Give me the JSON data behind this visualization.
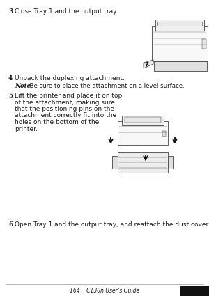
{
  "bg_color": "#f2f2f2",
  "page_bg": "#ffffff",
  "text_color": "#1a1a1a",
  "footer_text": "164    C130n User’s Guide",
  "footer_line_color": "#999999",
  "step3_num": "3",
  "step3_text": "Close Tray 1 and the output tray.",
  "step4_num": "4",
  "step4_text": "Unpack the duplexing attachment.",
  "note_label": "Note",
  "note_text": "  Be sure to place the attachment on a level surface.",
  "step5_num": "5",
  "step5_lines": [
    "Lift the printer and place it on top",
    "of the attachment, making sure",
    "that the positioning pins on the",
    "attachment correctly fit into the",
    "holes on the bottom of the",
    "printer."
  ],
  "step6_num": "6",
  "step6_text": "Open Tray 1 and the output tray, and reattach the dust cover.",
  "font_size_step": 6.5,
  "font_size_note": 6.2,
  "font_size_footer": 5.5,
  "arrow_color": "#111111",
  "outline_color": "#444444",
  "printer_fill": "#f8f8f8",
  "attach_fill": "#ececec",
  "shadow_color": "#cccccc"
}
